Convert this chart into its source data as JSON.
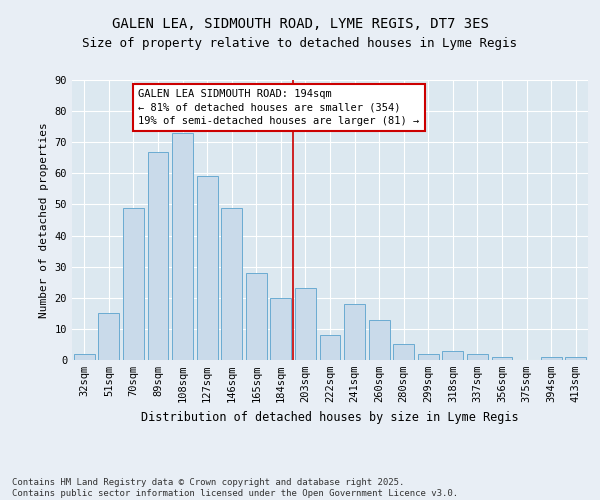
{
  "title1": "GALEN LEA, SIDMOUTH ROAD, LYME REGIS, DT7 3ES",
  "title2": "Size of property relative to detached houses in Lyme Regis",
  "xlabel": "Distribution of detached houses by size in Lyme Regis",
  "ylabel": "Number of detached properties",
  "categories": [
    "32sqm",
    "51sqm",
    "70sqm",
    "89sqm",
    "108sqm",
    "127sqm",
    "146sqm",
    "165sqm",
    "184sqm",
    "203sqm",
    "222sqm",
    "241sqm",
    "260sqm",
    "280sqm",
    "299sqm",
    "318sqm",
    "337sqm",
    "356sqm",
    "375sqm",
    "394sqm",
    "413sqm"
  ],
  "values": [
    2,
    15,
    49,
    67,
    73,
    59,
    49,
    28,
    20,
    23,
    8,
    18,
    13,
    5,
    2,
    3,
    2,
    1,
    0,
    1,
    1
  ],
  "bar_color": "#c9daea",
  "bar_edge_color": "#6aabd2",
  "vline_x": 8.5,
  "vline_color": "#cc0000",
  "annotation_text": "GALEN LEA SIDMOUTH ROAD: 194sqm\n← 81% of detached houses are smaller (354)\n19% of semi-detached houses are larger (81) →",
  "annotation_box_color": "#cc0000",
  "ylim": [
    0,
    90
  ],
  "yticks": [
    0,
    10,
    20,
    30,
    40,
    50,
    60,
    70,
    80,
    90
  ],
  "fig_bg_color": "#e8eef5",
  "plot_bg_color": "#dce8f0",
  "grid_color": "#ffffff",
  "footer": "Contains HM Land Registry data © Crown copyright and database right 2025.\nContains public sector information licensed under the Open Government Licence v3.0.",
  "title1_fontsize": 10,
  "title2_fontsize": 9,
  "xlabel_fontsize": 8.5,
  "ylabel_fontsize": 8,
  "tick_fontsize": 7.5,
  "annot_fontsize": 7.5,
  "footer_fontsize": 6.5
}
